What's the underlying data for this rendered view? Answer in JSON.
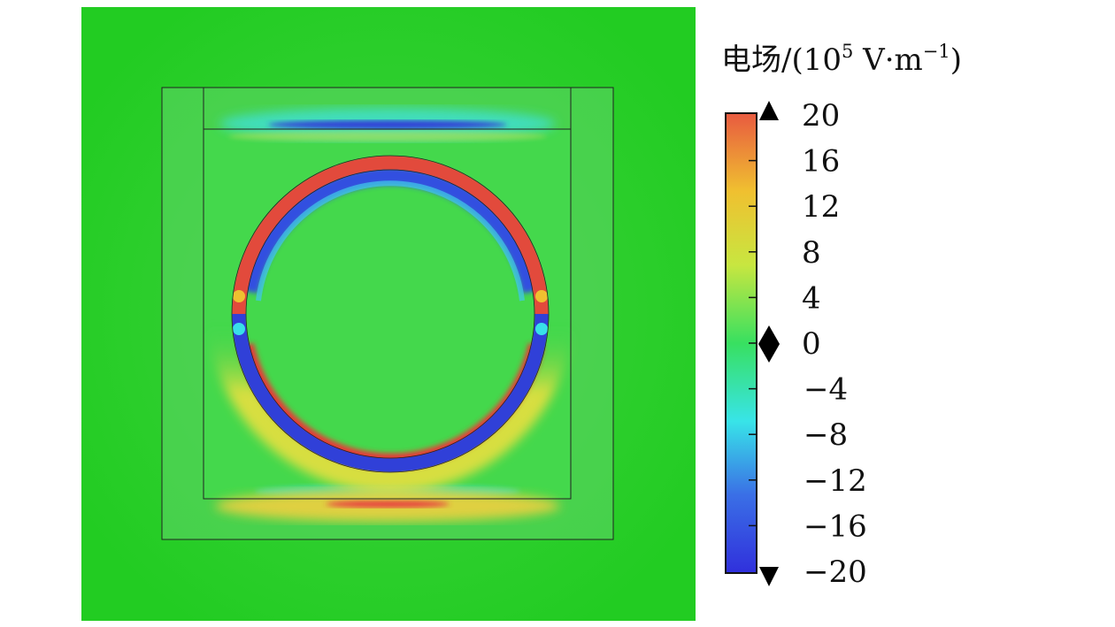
{
  "chart_data": {
    "type": "heatmap",
    "colorbar": {
      "title_prefix": "电场/(10",
      "title_exp": "5",
      "title_mid": " V·m",
      "title_exp2": "−1",
      "title_suffix": ")",
      "ticks": [
        {
          "value": 20,
          "label": "20"
        },
        {
          "value": 16,
          "label": "16"
        },
        {
          "value": 12,
          "label": "12"
        },
        {
          "value": 8,
          "label": "8"
        },
        {
          "value": 4,
          "label": "4"
        },
        {
          "value": 0,
          "label": "0"
        },
        {
          "value": -4,
          "label": "−4"
        },
        {
          "value": -8,
          "label": "−8"
        },
        {
          "value": -12,
          "label": "−12"
        },
        {
          "value": -16,
          "label": "−16"
        },
        {
          "value": -20,
          "label": "−20"
        }
      ],
      "range": [
        -20,
        20
      ],
      "marker_value": 0,
      "colormap": [
        "#3030dc",
        "#3a6fe6",
        "#38e4e8",
        "#38e060",
        "#c8e640",
        "#f0c030",
        "#e85a40"
      ]
    },
    "field_levels": {
      "background": 0,
      "ring_top": 20,
      "ring_bottom": -20,
      "ring_inner_halo_top": -20,
      "ring_outer_halo_bottom": 20,
      "box_top_edge": -18,
      "box_bottom_edge": 18
    }
  }
}
